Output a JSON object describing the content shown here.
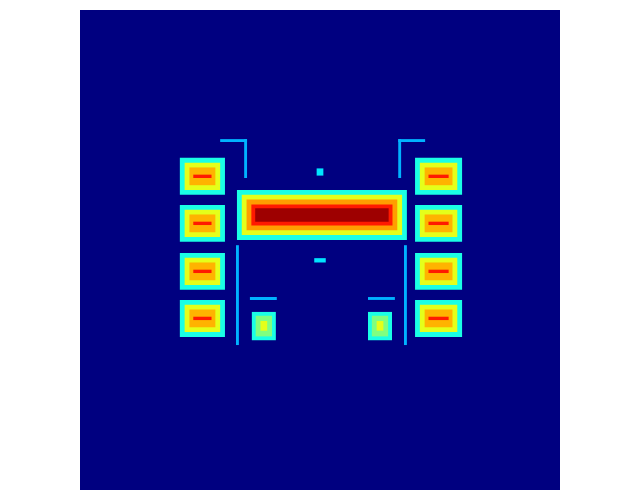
{
  "chart_data": {
    "type": "heatmap",
    "xlim": [
      0,
      100
    ],
    "ylim": [
      0,
      100
    ],
    "zlim": [
      0,
      1
    ],
    "tick_labels": false,
    "cells": [
      {
        "x": [
          0,
          100
        ],
        "y": [
          0,
          100
        ],
        "value": 0
      },
      {
        "x": [
          20.8,
          30.2
        ],
        "y": [
          30.8,
          38.5
        ],
        "value": 0.4
      },
      {
        "x": [
          21.8,
          29.2
        ],
        "y": [
          31.8,
          37.5
        ],
        "value": 0.6
      },
      {
        "x": [
          22.8,
          28.2
        ],
        "y": [
          32.8,
          36.5
        ],
        "value": 0.7
      },
      {
        "x": [
          23.6,
          27.4
        ],
        "y": [
          34.3,
          35.0
        ],
        "value": 0.85
      },
      {
        "x": [
          20.8,
          30.2
        ],
        "y": [
          40.6,
          48.3
        ],
        "value": 0.4
      },
      {
        "x": [
          21.8,
          29.2
        ],
        "y": [
          41.6,
          47.3
        ],
        "value": 0.6
      },
      {
        "x": [
          22.8,
          28.2
        ],
        "y": [
          42.6,
          46.3
        ],
        "value": 0.7
      },
      {
        "x": [
          23.6,
          27.4
        ],
        "y": [
          44.1,
          44.8
        ],
        "value": 0.85
      },
      {
        "x": [
          20.8,
          30.2
        ],
        "y": [
          50.6,
          58.3
        ],
        "value": 0.4
      },
      {
        "x": [
          21.8,
          29.2
        ],
        "y": [
          51.6,
          57.3
        ],
        "value": 0.6
      },
      {
        "x": [
          22.8,
          28.2
        ],
        "y": [
          52.6,
          56.3
        ],
        "value": 0.7
      },
      {
        "x": [
          23.6,
          27.4
        ],
        "y": [
          54.1,
          54.8
        ],
        "value": 0.85
      },
      {
        "x": [
          20.8,
          30.2
        ],
        "y": [
          60.4,
          68.1
        ],
        "value": 0.4
      },
      {
        "x": [
          21.8,
          29.2
        ],
        "y": [
          61.4,
          67.1
        ],
        "value": 0.6
      },
      {
        "x": [
          22.8,
          28.2
        ],
        "y": [
          62.4,
          66.1
        ],
        "value": 0.7
      },
      {
        "x": [
          23.6,
          27.4
        ],
        "y": [
          63.9,
          64.6
        ],
        "value": 0.85
      },
      {
        "x": [
          69.8,
          79.6
        ],
        "y": [
          30.8,
          38.5
        ],
        "value": 0.4
      },
      {
        "x": [
          70.8,
          78.6
        ],
        "y": [
          31.8,
          37.5
        ],
        "value": 0.6
      },
      {
        "x": [
          71.8,
          77.6
        ],
        "y": [
          32.8,
          36.5
        ],
        "value": 0.7
      },
      {
        "x": [
          72.6,
          76.8
        ],
        "y": [
          34.3,
          35.0
        ],
        "value": 0.85
      },
      {
        "x": [
          69.8,
          79.6
        ],
        "y": [
          40.6,
          48.3
        ],
        "value": 0.4
      },
      {
        "x": [
          70.8,
          78.6
        ],
        "y": [
          41.6,
          47.3
        ],
        "value": 0.6
      },
      {
        "x": [
          71.8,
          77.6
        ],
        "y": [
          42.6,
          46.3
        ],
        "value": 0.7
      },
      {
        "x": [
          72.6,
          76.8
        ],
        "y": [
          44.1,
          44.8
        ],
        "value": 0.85
      },
      {
        "x": [
          69.8,
          79.6
        ],
        "y": [
          50.6,
          58.3
        ],
        "value": 0.4
      },
      {
        "x": [
          70.8,
          78.6
        ],
        "y": [
          51.6,
          57.3
        ],
        "value": 0.6
      },
      {
        "x": [
          71.8,
          77.6
        ],
        "y": [
          52.6,
          56.3
        ],
        "value": 0.7
      },
      {
        "x": [
          72.6,
          76.8
        ],
        "y": [
          54.1,
          54.8
        ],
        "value": 0.85
      },
      {
        "x": [
          69.8,
          79.6
        ],
        "y": [
          60.4,
          68.1
        ],
        "value": 0.4
      },
      {
        "x": [
          70.8,
          78.6
        ],
        "y": [
          61.4,
          67.1
        ],
        "value": 0.6
      },
      {
        "x": [
          71.8,
          77.6
        ],
        "y": [
          62.4,
          66.1
        ],
        "value": 0.7
      },
      {
        "x": [
          72.6,
          76.8
        ],
        "y": [
          63.9,
          64.6
        ],
        "value": 0.85
      },
      {
        "x": [
          32.7,
          68.1
        ],
        "y": [
          37.5,
          47.9
        ],
        "value": 0.4
      },
      {
        "x": [
          33.7,
          67.1
        ],
        "y": [
          38.5,
          46.9
        ],
        "value": 0.6
      },
      {
        "x": [
          34.7,
          66.1
        ],
        "y": [
          39.5,
          45.9
        ],
        "value": 0.72
      },
      {
        "x": [
          35.7,
          65.1
        ],
        "y": [
          40.5,
          44.9
        ],
        "value": 0.85
      },
      {
        "x": [
          36.5,
          64.3
        ],
        "y": [
          41.3,
          44.1
        ],
        "value": 0.97
      },
      {
        "x": [
          35.8,
          40.8
        ],
        "y": [
          62.9,
          68.8
        ],
        "value": 0.4
      },
      {
        "x": [
          36.6,
          40.0
        ],
        "y": [
          63.7,
          68.0
        ],
        "value": 0.5
      },
      {
        "x": [
          37.6,
          39.0
        ],
        "y": [
          64.8,
          66.8
        ],
        "value": 0.6
      },
      {
        "x": [
          60.0,
          65.0
        ],
        "y": [
          62.9,
          68.8
        ],
        "value": 0.4
      },
      {
        "x": [
          60.8,
          64.2
        ],
        "y": [
          63.7,
          68.0
        ],
        "value": 0.5
      },
      {
        "x": [
          61.8,
          63.2
        ],
        "y": [
          64.8,
          66.8
        ],
        "value": 0.6
      },
      {
        "x": [
          29.2,
          34.8
        ],
        "y": [
          26.9,
          27.5
        ],
        "value": 0.3
      },
      {
        "x": [
          34.2,
          34.8
        ],
        "y": [
          26.9,
          35.0
        ],
        "value": 0.3
      },
      {
        "x": [
          66.3,
          71.9
        ],
        "y": [
          26.9,
          27.5
        ],
        "value": 0.3
      },
      {
        "x": [
          66.3,
          66.9
        ],
        "y": [
          26.9,
          35.0
        ],
        "value": 0.3
      },
      {
        "x": [
          49.3,
          50.7
        ],
        "y": [
          33.0,
          34.5
        ],
        "value": 0.35
      },
      {
        "x": [
          48.8,
          51.2
        ],
        "y": [
          51.7,
          52.6
        ],
        "value": 0.35
      },
      {
        "x": [
          32.5,
          33.1
        ],
        "y": [
          49.0,
          69.8
        ],
        "value": 0.3
      },
      {
        "x": [
          67.5,
          68.1
        ],
        "y": [
          49.0,
          69.8
        ],
        "value": 0.3
      },
      {
        "x": [
          35.4,
          41.0
        ],
        "y": [
          59.8,
          60.4
        ],
        "value": 0.3
      },
      {
        "x": [
          60.0,
          65.6
        ],
        "y": [
          59.8,
          60.4
        ],
        "value": 0.3
      }
    ]
  }
}
